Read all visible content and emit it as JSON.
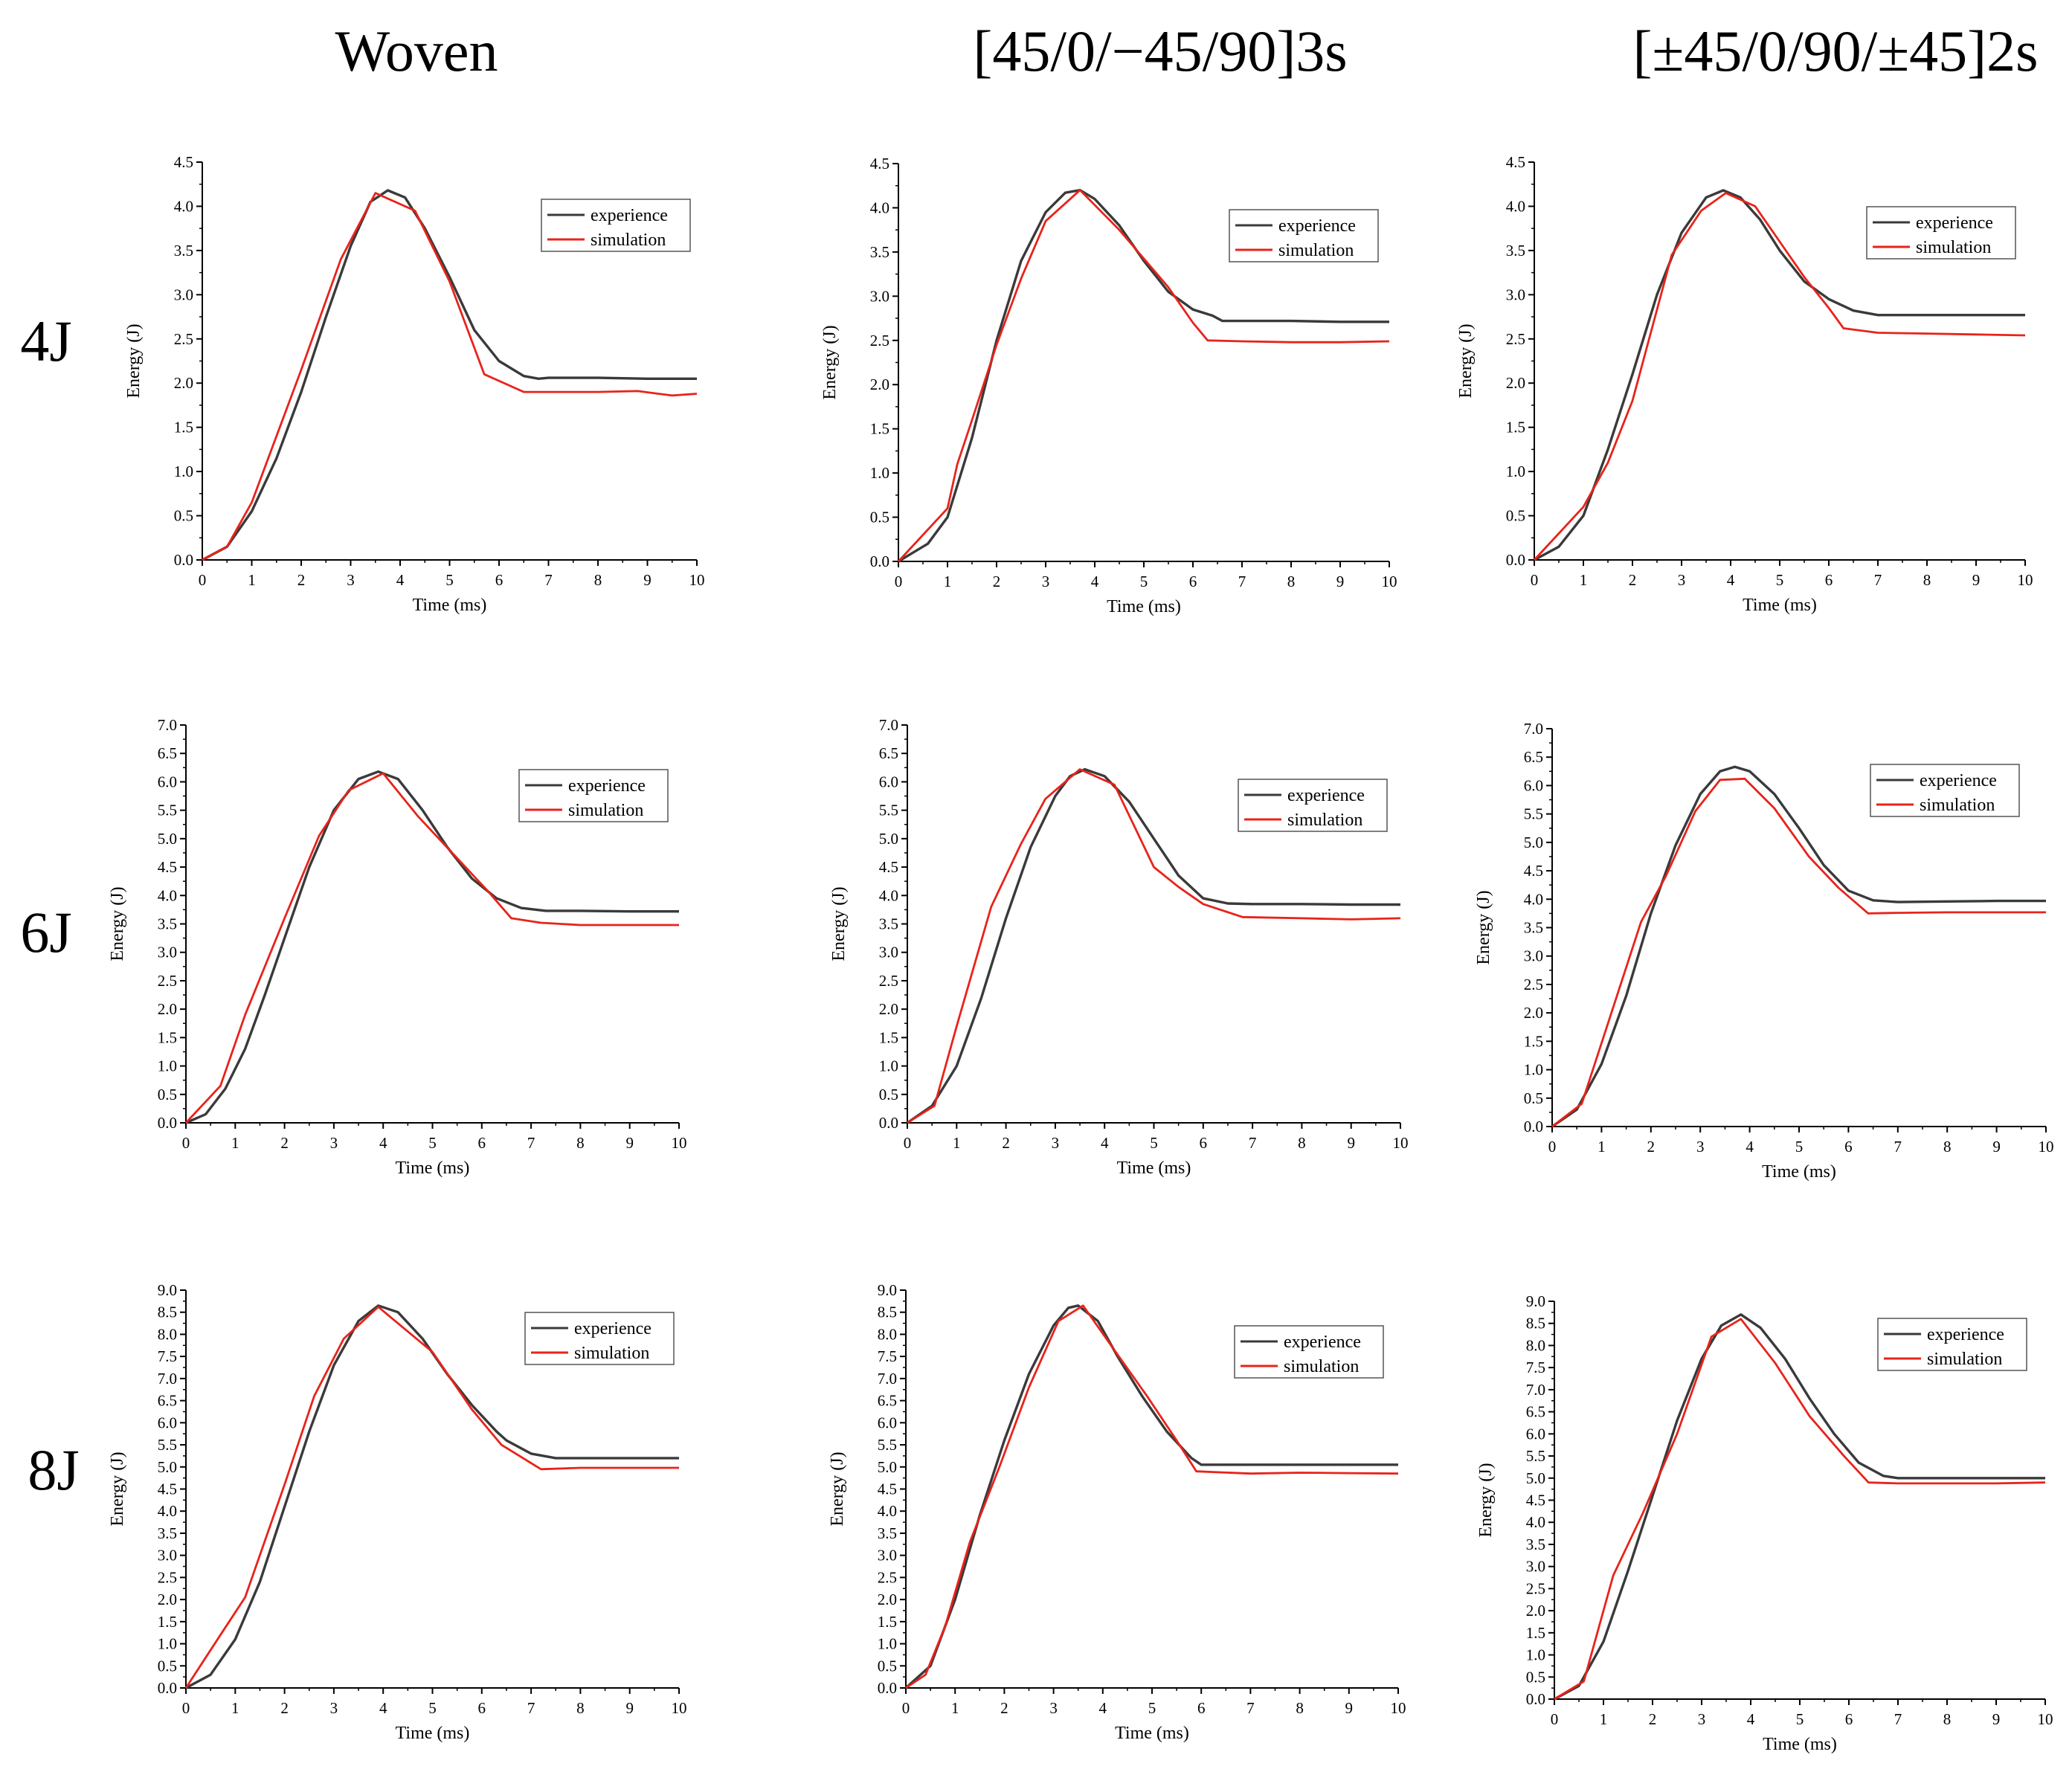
{
  "figure": {
    "column_titles": [
      "Woven",
      "[45/0/−45/90]3s",
      "[±45/0/90/±45]2s"
    ],
    "row_labels": [
      "4J",
      "6J",
      "8J"
    ]
  },
  "colors": {
    "experience": "#3a3a3a",
    "simulation": "#e8231a"
  },
  "chart_data": [
    {
      "type": "line",
      "title": "Woven",
      "row": "4J",
      "xlabel": "Time (ms)",
      "ylabel": "Energy (J)",
      "xlim": [
        0,
        10
      ],
      "ylim": [
        0,
        4.5
      ],
      "xticks": [
        "0",
        "1",
        "2",
        "3",
        "4",
        "5",
        "6",
        "7",
        "8",
        "9",
        "10"
      ],
      "yticks": [
        "0.0",
        "0.5",
        "1.0",
        "1.5",
        "2.0",
        "2.5",
        "3.0",
        "3.5",
        "4.0",
        "4.5"
      ],
      "series": [
        {
          "name": "experience",
          "x": [
            0,
            0.5,
            1,
            1.5,
            2,
            2.5,
            3,
            3.4,
            3.75,
            4.1,
            4.5,
            5,
            5.5,
            6,
            6.5,
            6.8,
            7,
            8,
            9,
            10
          ],
          "y": [
            0,
            0.15,
            0.55,
            1.15,
            1.9,
            2.75,
            3.55,
            4.05,
            4.18,
            4.1,
            3.75,
            3.2,
            2.6,
            2.25,
            2.08,
            2.05,
            2.06,
            2.06,
            2.05,
            2.05
          ]
        },
        {
          "name": "simulation",
          "x": [
            0,
            0.5,
            1,
            2,
            2.8,
            3.5,
            4.3,
            5,
            5.7,
            6.5,
            7,
            8,
            8.8,
            9.5,
            10
          ],
          "y": [
            0,
            0.15,
            0.65,
            2.15,
            3.4,
            4.15,
            3.95,
            3.15,
            2.1,
            1.9,
            1.9,
            1.9,
            1.91,
            1.86,
            1.88
          ]
        }
      ]
    },
    {
      "type": "line",
      "title": "[45/0/−45/90]3s",
      "row": "4J",
      "xlabel": "Time (ms)",
      "ylabel": "Energy (J)",
      "xlim": [
        0,
        10
      ],
      "ylim": [
        0,
        4.5
      ],
      "xticks": [
        "0",
        "1",
        "2",
        "3",
        "4",
        "5",
        "6",
        "7",
        "8",
        "9",
        "10"
      ],
      "yticks": [
        "0.0",
        "0.5",
        "1.0",
        "1.5",
        "2.0",
        "2.5",
        "3.0",
        "3.5",
        "4.0",
        "4.5"
      ],
      "series": [
        {
          "name": "experience",
          "x": [
            0,
            0.3,
            0.6,
            1,
            1.5,
            2,
            2.5,
            3,
            3.4,
            3.7,
            4,
            4.5,
            5,
            5.5,
            6,
            6.4,
            6.6,
            7,
            8,
            9,
            10
          ],
          "y": [
            0,
            0.1,
            0.2,
            0.5,
            1.4,
            2.5,
            3.4,
            3.95,
            4.17,
            4.2,
            4.1,
            3.8,
            3.4,
            3.05,
            2.85,
            2.78,
            2.72,
            2.72,
            2.72,
            2.71,
            2.71
          ]
        },
        {
          "name": "simulation",
          "x": [
            0,
            1,
            1.2,
            1.5,
            2,
            2.5,
            3,
            3.7,
            4.5,
            5.5,
            6,
            6.3,
            7,
            8,
            9,
            10
          ],
          "y": [
            0,
            0.6,
            1.1,
            1.6,
            2.45,
            3.2,
            3.85,
            4.2,
            3.75,
            3.1,
            2.7,
            2.5,
            2.49,
            2.48,
            2.48,
            2.49
          ]
        }
      ]
    },
    {
      "type": "line",
      "title": "[±45/0/90/±45]2s",
      "row": "4J",
      "xlabel": "Time (ms)",
      "ylabel": "Energy (J)",
      "xlim": [
        0,
        10
      ],
      "ylim": [
        0,
        4.5
      ],
      "xticks": [
        "0",
        "1",
        "2",
        "3",
        "4",
        "5",
        "6",
        "7",
        "8",
        "9",
        "10"
      ],
      "yticks": [
        "0.0",
        "0.5",
        "1.0",
        "1.5",
        "2.0",
        "2.5",
        "3.0",
        "3.5",
        "4.0",
        "4.5"
      ],
      "series": [
        {
          "name": "experience",
          "x": [
            0,
            0.5,
            1,
            1.5,
            2,
            2.5,
            3,
            3.5,
            3.85,
            4.2,
            4.6,
            5,
            5.5,
            6,
            6.5,
            7,
            8,
            9,
            10
          ],
          "y": [
            0,
            0.15,
            0.5,
            1.25,
            2.1,
            3.0,
            3.7,
            4.1,
            4.18,
            4.1,
            3.85,
            3.5,
            3.15,
            2.95,
            2.82,
            2.77,
            2.77,
            2.77,
            2.77
          ]
        },
        {
          "name": "simulation",
          "x": [
            0,
            1,
            1.5,
            2,
            2.8,
            3.4,
            3.9,
            4.5,
            5,
            5.5,
            6,
            6.3,
            7,
            8,
            9,
            10
          ],
          "y": [
            0,
            0.6,
            1.1,
            1.8,
            3.45,
            3.95,
            4.15,
            4.0,
            3.6,
            3.2,
            2.85,
            2.62,
            2.57,
            2.56,
            2.55,
            2.54
          ]
        }
      ]
    },
    {
      "type": "line",
      "title": "Woven",
      "row": "6J",
      "xlabel": "Time (ms)",
      "ylabel": "Energy (J)",
      "xlim": [
        0,
        10
      ],
      "ylim": [
        0,
        7.0
      ],
      "xticks": [
        "0",
        "1",
        "2",
        "3",
        "4",
        "5",
        "6",
        "7",
        "8",
        "9",
        "10"
      ],
      "yticks": [
        "0.0",
        "0.5",
        "1.0",
        "1.5",
        "2.0",
        "2.5",
        "3.0",
        "3.5",
        "4.0",
        "4.5",
        "5.0",
        "5.5",
        "6.0",
        "6.5",
        "7.0"
      ],
      "series": [
        {
          "name": "experience",
          "x": [
            0,
            0.4,
            0.8,
            1.2,
            1.6,
            2,
            2.5,
            3,
            3.5,
            3.9,
            4.3,
            4.8,
            5.3,
            5.8,
            6.3,
            6.8,
            7.3,
            8,
            9,
            10
          ],
          "y": [
            0,
            0.15,
            0.6,
            1.3,
            2.25,
            3.25,
            4.5,
            5.5,
            6.05,
            6.18,
            6.05,
            5.5,
            4.85,
            4.3,
            3.95,
            3.78,
            3.73,
            3.73,
            3.72,
            3.72
          ]
        },
        {
          "name": "simulation",
          "x": [
            0,
            0.7,
            1.2,
            2,
            2.7,
            3.3,
            4,
            4.7,
            5.4,
            6.1,
            6.6,
            7.2,
            8,
            9,
            10
          ],
          "y": [
            0,
            0.65,
            1.9,
            3.6,
            5.05,
            5.85,
            6.15,
            5.4,
            4.75,
            4.1,
            3.6,
            3.52,
            3.48,
            3.48,
            3.48
          ]
        }
      ]
    },
    {
      "type": "line",
      "title": "[45/0/−45/90]3s",
      "row": "6J",
      "xlabel": "Time (ms)",
      "ylabel": "Energy (J)",
      "xlim": [
        0,
        10
      ],
      "ylim": [
        0,
        7.0
      ],
      "xticks": [
        "0",
        "1",
        "2",
        "3",
        "4",
        "5",
        "6",
        "7",
        "8",
        "9",
        "10"
      ],
      "yticks": [
        "0.0",
        "0.5",
        "1.0",
        "1.5",
        "2.0",
        "2.5",
        "3.0",
        "3.5",
        "4.0",
        "4.5",
        "5.0",
        "5.5",
        "6.0",
        "6.5",
        "7.0"
      ],
      "series": [
        {
          "name": "experience",
          "x": [
            0,
            0.5,
            1,
            1.5,
            2,
            2.5,
            3,
            3.3,
            3.6,
            4,
            4.5,
            5,
            5.5,
            6,
            6.5,
            7,
            8,
            9,
            10
          ],
          "y": [
            0,
            0.3,
            1.0,
            2.2,
            3.6,
            4.85,
            5.75,
            6.1,
            6.22,
            6.1,
            5.65,
            5.0,
            4.35,
            3.95,
            3.86,
            3.85,
            3.85,
            3.84,
            3.84
          ]
        },
        {
          "name": "simulation",
          "x": [
            0,
            0.55,
            1,
            1.7,
            2.3,
            2.8,
            3.5,
            4.2,
            5,
            5.5,
            6,
            6.8,
            8,
            9,
            10
          ],
          "y": [
            0,
            0.3,
            1.7,
            3.8,
            4.9,
            5.7,
            6.22,
            5.95,
            4.5,
            4.15,
            3.85,
            3.62,
            3.6,
            3.58,
            3.6
          ]
        }
      ]
    },
    {
      "type": "line",
      "title": "[±45/0/90/±45]2s",
      "row": "6J",
      "xlabel": "Time (ms)",
      "ylabel": "Energy (J)",
      "xlim": [
        0,
        10
      ],
      "ylim": [
        0,
        7.0
      ],
      "xticks": [
        "0",
        "1",
        "2",
        "3",
        "4",
        "5",
        "6",
        "7",
        "8",
        "9",
        "10"
      ],
      "yticks": [
        "0.0",
        "0.5",
        "1.0",
        "1.5",
        "2.0",
        "2.5",
        "3.0",
        "3.5",
        "4.0",
        "4.5",
        "5.0",
        "5.5",
        "6.0",
        "6.5",
        "7.0"
      ],
      "series": [
        {
          "name": "experience",
          "x": [
            0,
            0.5,
            1,
            1.5,
            2,
            2.5,
            3,
            3.4,
            3.7,
            4,
            4.5,
            5,
            5.5,
            6,
            6.5,
            7,
            8,
            9,
            10
          ],
          "y": [
            0,
            0.3,
            1.1,
            2.3,
            3.75,
            4.95,
            5.85,
            6.25,
            6.33,
            6.25,
            5.85,
            5.25,
            4.6,
            4.15,
            3.98,
            3.95,
            3.96,
            3.97,
            3.97
          ]
        },
        {
          "name": "simulation",
          "x": [
            0,
            0.6,
            1.2,
            1.8,
            2.3,
            2.9,
            3.4,
            3.9,
            4.5,
            5.2,
            5.8,
            6.4,
            7,
            8,
            9,
            10
          ],
          "y": [
            0,
            0.4,
            2.0,
            3.6,
            4.4,
            5.55,
            6.1,
            6.12,
            5.6,
            4.75,
            4.2,
            3.75,
            3.76,
            3.77,
            3.77,
            3.77
          ]
        }
      ]
    },
    {
      "type": "line",
      "title": "Woven",
      "row": "8J",
      "xlabel": "Time (ms)",
      "ylabel": "Energy (J)",
      "xlim": [
        0,
        10
      ],
      "ylim": [
        0,
        9.0
      ],
      "xticks": [
        "0",
        "1",
        "2",
        "3",
        "4",
        "5",
        "6",
        "7",
        "8",
        "9",
        "10"
      ],
      "yticks": [
        "0.0",
        "0.5",
        "1.0",
        "1.5",
        "2.0",
        "2.5",
        "3.0",
        "3.5",
        "4.0",
        "4.5",
        "5.0",
        "5.5",
        "6.0",
        "6.5",
        "7.0",
        "7.5",
        "8.0",
        "8.5",
        "9.0"
      ],
      "series": [
        {
          "name": "experience",
          "x": [
            0,
            0.5,
            1,
            1.5,
            2,
            2.5,
            3,
            3.5,
            3.9,
            4.3,
            4.8,
            5.3,
            5.8,
            6.3,
            6.5,
            7,
            7.5,
            8,
            9,
            10
          ],
          "y": [
            0,
            0.3,
            1.1,
            2.4,
            4.1,
            5.8,
            7.3,
            8.3,
            8.65,
            8.5,
            7.9,
            7.1,
            6.4,
            5.8,
            5.6,
            5.3,
            5.2,
            5.2,
            5.2,
            5.2
          ]
        },
        {
          "name": "simulation",
          "x": [
            0,
            0.7,
            1.2,
            2,
            2.6,
            3.2,
            3.9,
            5,
            5.8,
            6.4,
            7.2,
            8,
            9,
            10
          ],
          "y": [
            0,
            1.2,
            2.05,
            4.6,
            6.6,
            7.9,
            8.62,
            7.6,
            6.3,
            5.5,
            4.95,
            4.98,
            4.98,
            4.98
          ]
        }
      ]
    },
    {
      "type": "line",
      "title": "[45/0/−45/90]3s",
      "row": "8J",
      "xlabel": "Time (ms)",
      "ylabel": "Energy (J)",
      "xlim": [
        0,
        10
      ],
      "ylim": [
        0,
        9.0
      ],
      "xticks": [
        "0",
        "1",
        "2",
        "3",
        "4",
        "5",
        "6",
        "7",
        "8",
        "9",
        "10"
      ],
      "yticks": [
        "0.0",
        "0.5",
        "1.0",
        "1.5",
        "2.0",
        "2.5",
        "3.0",
        "3.5",
        "4.0",
        "4.5",
        "5.0",
        "5.5",
        "6.0",
        "6.5",
        "7.0",
        "7.5",
        "8.0",
        "8.5",
        "9.0"
      ],
      "series": [
        {
          "name": "experience",
          "x": [
            0,
            0.5,
            1,
            1.5,
            2,
            2.5,
            3,
            3.3,
            3.5,
            3.9,
            4.3,
            4.8,
            5.3,
            5.8,
            6,
            7,
            8,
            9,
            10
          ],
          "y": [
            0,
            0.5,
            2.0,
            3.9,
            5.6,
            7.1,
            8.2,
            8.6,
            8.65,
            8.3,
            7.5,
            6.6,
            5.8,
            5.2,
            5.05,
            5.05,
            5.05,
            5.05,
            5.05
          ]
        },
        {
          "name": "simulation",
          "x": [
            0,
            0.4,
            0.8,
            1.3,
            1.9,
            2.5,
            3.1,
            3.6,
            4.2,
            4.9,
            5.5,
            5.9,
            7,
            8,
            9,
            10
          ],
          "y": [
            0,
            0.3,
            1.4,
            3.3,
            5.0,
            6.8,
            8.3,
            8.65,
            7.7,
            6.6,
            5.6,
            4.9,
            4.85,
            4.87,
            4.86,
            4.85
          ]
        }
      ]
    },
    {
      "type": "line",
      "title": "[±45/0/90/±45]2s",
      "row": "8J",
      "xlabel": "Time (ms)",
      "ylabel": "Energy (J)",
      "xlim": [
        0,
        10
      ],
      "ylim": [
        0,
        9.0
      ],
      "xticks": [
        "0",
        "1",
        "2",
        "3",
        "4",
        "5",
        "6",
        "7",
        "8",
        "9",
        "10"
      ],
      "yticks": [
        "0.0",
        "0.5",
        "1.0",
        "1.5",
        "2.0",
        "2.5",
        "3.0",
        "3.5",
        "4.0",
        "4.5",
        "5.0",
        "5.5",
        "6.0",
        "6.5",
        "7.0",
        "7.5",
        "8.0",
        "8.5",
        "9.0"
      ],
      "series": [
        {
          "name": "experience",
          "x": [
            0,
            0.5,
            1,
            1.5,
            2,
            2.5,
            3,
            3.4,
            3.8,
            4.2,
            4.7,
            5.2,
            5.7,
            6.2,
            6.7,
            7,
            8,
            9,
            10
          ],
          "y": [
            0,
            0.3,
            1.3,
            2.9,
            4.6,
            6.3,
            7.7,
            8.45,
            8.7,
            8.4,
            7.7,
            6.8,
            6.0,
            5.35,
            5.05,
            5.0,
            5.0,
            5.0,
            5.0
          ]
        },
        {
          "name": "simulation",
          "x": [
            0,
            0.6,
            1.2,
            1.8,
            2.5,
            3.2,
            3.8,
            4.5,
            5.2,
            5.9,
            6.4,
            7,
            8,
            9,
            10
          ],
          "y": [
            0,
            0.4,
            2.8,
            4.2,
            6.0,
            8.2,
            8.6,
            7.6,
            6.4,
            5.5,
            4.9,
            4.88,
            4.88,
            4.88,
            4.9
          ]
        }
      ]
    }
  ]
}
